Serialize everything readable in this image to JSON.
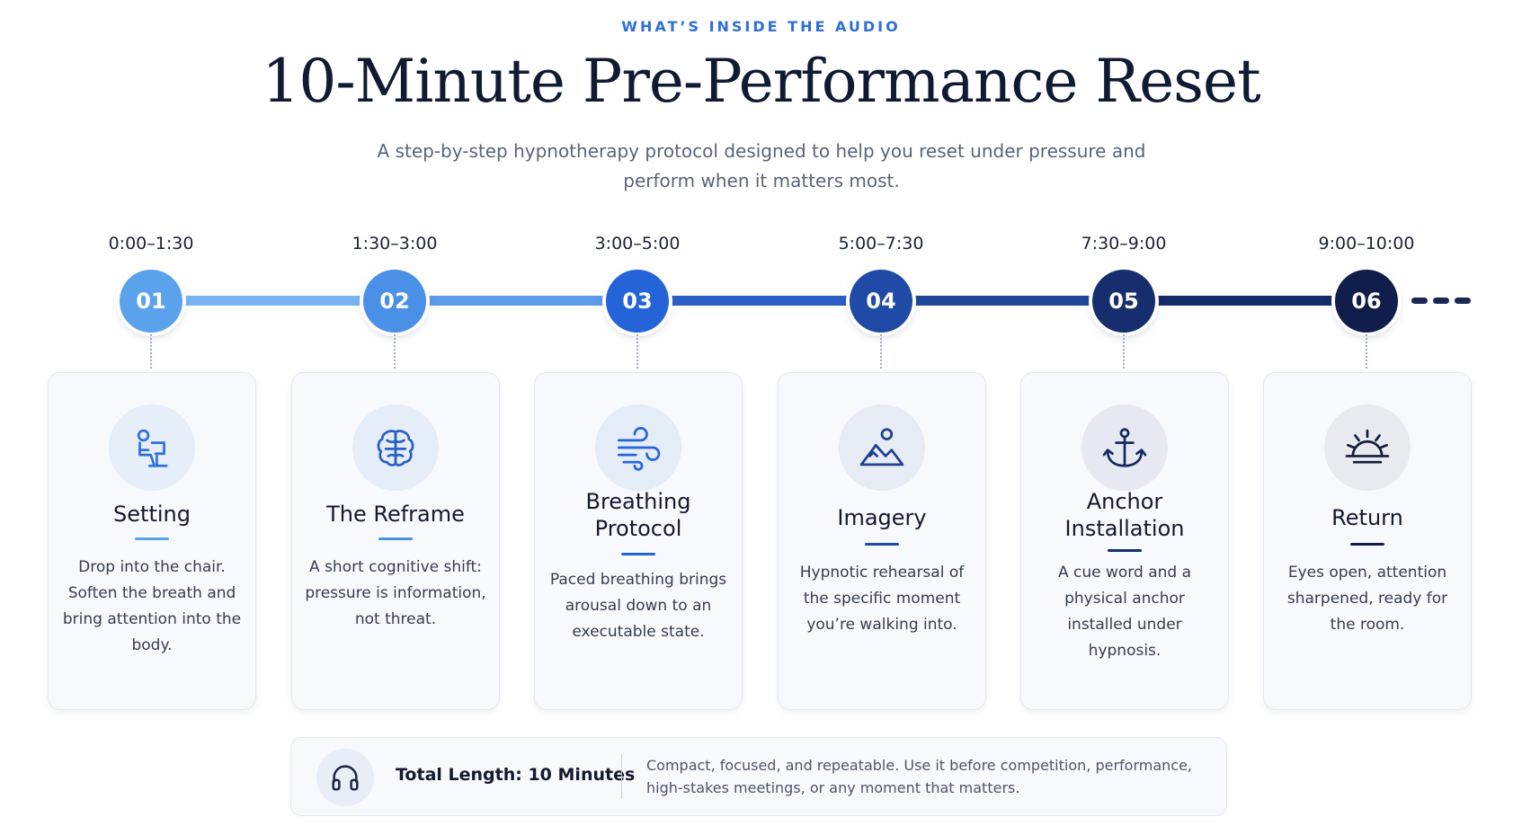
{
  "header": {
    "eyebrow": "WHAT’S INSIDE THE AUDIO",
    "title": "10-Minute Pre-Performance Reset",
    "subtitle": "A step-by-step hypnotherapy protocol designed to help you reset under pressure and perform when it matters most."
  },
  "steps": [
    {
      "time": "0:00–1:30",
      "number": "01",
      "title": "Setting",
      "description": "Drop into the chair. Soften the breath and bring attention into the body.",
      "icon": "seated-person-icon",
      "color": "#5aa2ec"
    },
    {
      "time": "1:30–3:00",
      "number": "02",
      "title": "The Reframe",
      "description": "A short cognitive shift: pressure is information, not threat.",
      "icon": "brain-icon",
      "color": "#4a90e6"
    },
    {
      "time": "3:00–5:00",
      "number": "03",
      "title": "Breathing Protocol",
      "description": "Paced breathing brings arousal down to an executable state.",
      "icon": "wind-icon",
      "color": "#2563d8"
    },
    {
      "time": "5:00–7:30",
      "number": "04",
      "title": "Imagery",
      "description": "Hypnotic rehearsal of the specific moment you’re walking into.",
      "icon": "mountain-sun-icon",
      "color": "#1f4aa6"
    },
    {
      "time": "7:30–9:00",
      "number": "05",
      "title": "Anchor Installation",
      "description": "A cue word and a physical anchor installed under hypnosis.",
      "icon": "anchor-icon",
      "color": "#172e6e"
    },
    {
      "time": "9:00–10:00",
      "number": "06",
      "title": "Return",
      "description": "Eyes open, attention sharpened, ready for the room.",
      "icon": "sunrise-icon",
      "color": "#111d4a"
    }
  ],
  "footer": {
    "icon": "headphones-icon",
    "length": "Total Length: 10 Minutes",
    "description": "Compact, focused, and repeatable. Use it before competition, performance, high-stakes meetings, or any moment that matters."
  }
}
